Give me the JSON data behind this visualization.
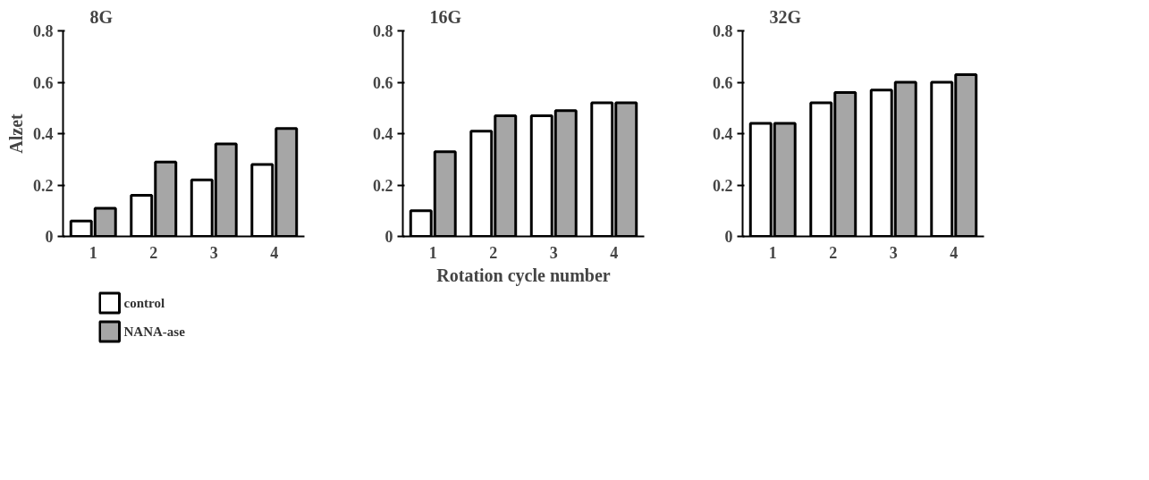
{
  "chart_data": [
    {
      "type": "bar",
      "title": "8G",
      "ylabel": "Alzet",
      "categories": [
        "1",
        "2",
        "3",
        "4"
      ],
      "ylim": [
        0,
        0.8
      ],
      "yticks": [
        0,
        0.2,
        0.4,
        0.6,
        0.8
      ],
      "grid": false,
      "legend": "bottom left",
      "series": [
        {
          "name": "control",
          "color": "#ffffff",
          "values": [
            0.06,
            0.16,
            0.22,
            0.28
          ]
        },
        {
          "name": "NANA-ase",
          "color": "#a6a6a6",
          "values": [
            0.11,
            0.29,
            0.36,
            0.42
          ]
        }
      ]
    },
    {
      "type": "bar",
      "title": "16G",
      "xlabel": "Rotation cycle number",
      "categories": [
        "1",
        "2",
        "3",
        "4"
      ],
      "ylim": [
        0,
        0.8
      ],
      "yticks": [
        0,
        0.2,
        0.4,
        0.6,
        0.8
      ],
      "grid": false,
      "series": [
        {
          "color": "#ffffff",
          "values": [
            0.1,
            0.41,
            0.47,
            0.52
          ]
        },
        {
          "color": "#a6a6a6",
          "values": [
            0.33,
            0.47,
            0.49,
            0.52
          ]
        }
      ]
    },
    {
      "type": "bar",
      "title": "32G",
      "categories": [
        "1",
        "2",
        "3",
        "4"
      ],
      "ylim": [
        0,
        0.8
      ],
      "yticks": [
        0,
        0.2,
        0.4,
        0.6,
        0.8
      ],
      "grid": false,
      "series": [
        {
          "color": "#ffffff",
          "values": [
            0.44,
            0.52,
            0.57,
            0.6
          ]
        },
        {
          "color": "#a6a6a6",
          "values": [
            0.44,
            0.56,
            0.6,
            0.63
          ]
        }
      ]
    }
  ]
}
